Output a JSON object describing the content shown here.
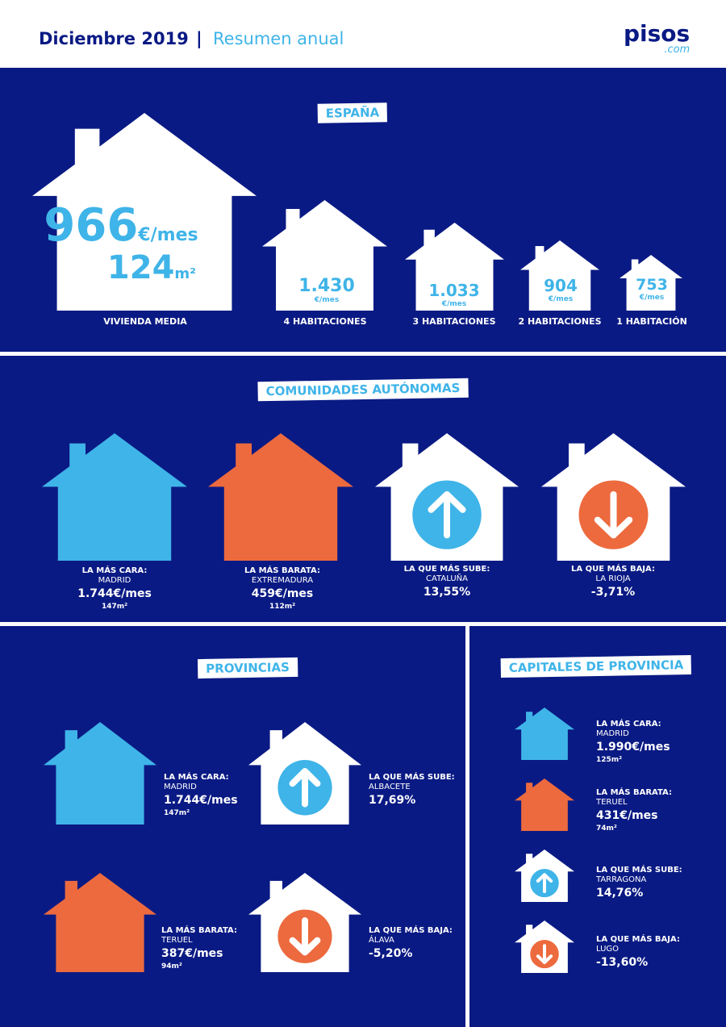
{
  "header": {
    "date": "Diciembre 2019",
    "separator": "|",
    "subtitle": "Resumen anual",
    "logo_main": "pisos",
    "logo_sub": ".com"
  },
  "colors": {
    "navy": "#0a1a84",
    "light_blue": "#3fb4e8",
    "orange": "#ec6a3e",
    "white": "#ffffff"
  },
  "espana": {
    "title": "ESPAÑA",
    "media": {
      "price": "966",
      "price_unit": "€/mes",
      "area": "124",
      "area_unit": "m²",
      "label": "VIVIENDA MEDIA"
    },
    "rooms": [
      {
        "price": "1.430",
        "unit": "€/mes",
        "label": "4 HABITACIONES"
      },
      {
        "price": "1.033",
        "unit": "€/mes",
        "label": "3 HABITACIONES"
      },
      {
        "price": "904",
        "unit": "€/mes",
        "label": "2 HABITACIONES"
      },
      {
        "price": "753",
        "unit": "€/mes",
        "label": "1 HABITACIÓN"
      }
    ]
  },
  "comunidades": {
    "title": "COMUNIDADES AUTÓNOMAS",
    "items": [
      {
        "heading": "LA MÁS CARA:",
        "name": "MADRID",
        "value": "1.744€/mes",
        "area": "147m²",
        "icon": "house-light-blue"
      },
      {
        "heading": "LA MÁS BARATA:",
        "name": "EXTREMADURA",
        "value": "459€/mes",
        "area": "112m²",
        "icon": "house-orange"
      },
      {
        "heading": "LA QUE MÁS SUBE:",
        "name": "CATALUÑA",
        "value": "13,55%",
        "icon": "arrow-up"
      },
      {
        "heading": "LA QUE MÁS BAJA:",
        "name": "LA RIOJA",
        "value": "-3,71%",
        "icon": "arrow-down"
      }
    ]
  },
  "provincias": {
    "title": "PROVINCIAS",
    "items": [
      {
        "heading": "LA MÁS CARA:",
        "name": "MADRID",
        "value": "1.744€/mes",
        "area": "147m²"
      },
      {
        "heading": "LA QUE MÁS SUBE:",
        "name": "ALBACETE",
        "value": "17,69%"
      },
      {
        "heading": "LA MÁS BARATA:",
        "name": "TERUEL",
        "value": "387€/mes",
        "area": "94m²"
      },
      {
        "heading": "LA QUE MÁS BAJA:",
        "name": "ÁLAVA",
        "value": "-5,20%"
      }
    ]
  },
  "capitales": {
    "title": "CAPITALES DE PROVINCIA",
    "items": [
      {
        "heading": "LA MÁS CARA:",
        "name": "MADRID",
        "value": "1.990€/mes",
        "area": "125m²"
      },
      {
        "heading": "LA MÁS BARATA:",
        "name": "TERUEL",
        "value": "431€/mes",
        "area": "74m²"
      },
      {
        "heading": "LA QUE MÁS SUBE:",
        "name": "TARRAGONA",
        "value": "14,76%"
      },
      {
        "heading": "LA QUE MÁS BAJA:",
        "name": "LUGO",
        "value": "-13,60%"
      }
    ]
  }
}
